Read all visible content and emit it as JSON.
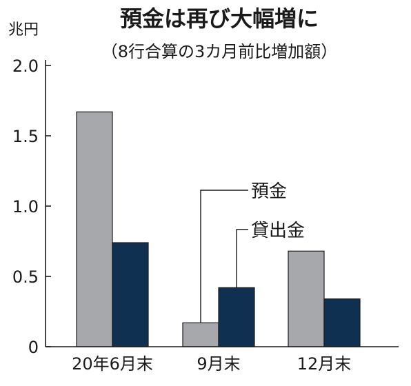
{
  "chart_data": {
    "type": "bar",
    "title": "預金は再び大幅増に",
    "subtitle": "（8行合算の3カ月前比増加額）",
    "unit_label": "兆円",
    "categories": [
      "20年6月末",
      "9月末",
      "12月末"
    ],
    "series": [
      {
        "name": "預金",
        "values": [
          1.67,
          0.17,
          0.68
        ],
        "color": "#a6a8ab"
      },
      {
        "name": "貸出金",
        "values": [
          0.74,
          0.42,
          0.34
        ],
        "color": "#0f3050"
      }
    ],
    "ylim": [
      0,
      2.0
    ],
    "yticks": [
      "0",
      "0.5",
      "1.0",
      "1.5",
      "2.0"
    ],
    "ytick_values": [
      0,
      0.5,
      1.0,
      1.5,
      2.0
    ],
    "legend_placement": "inline-annotations",
    "grid": false
  }
}
